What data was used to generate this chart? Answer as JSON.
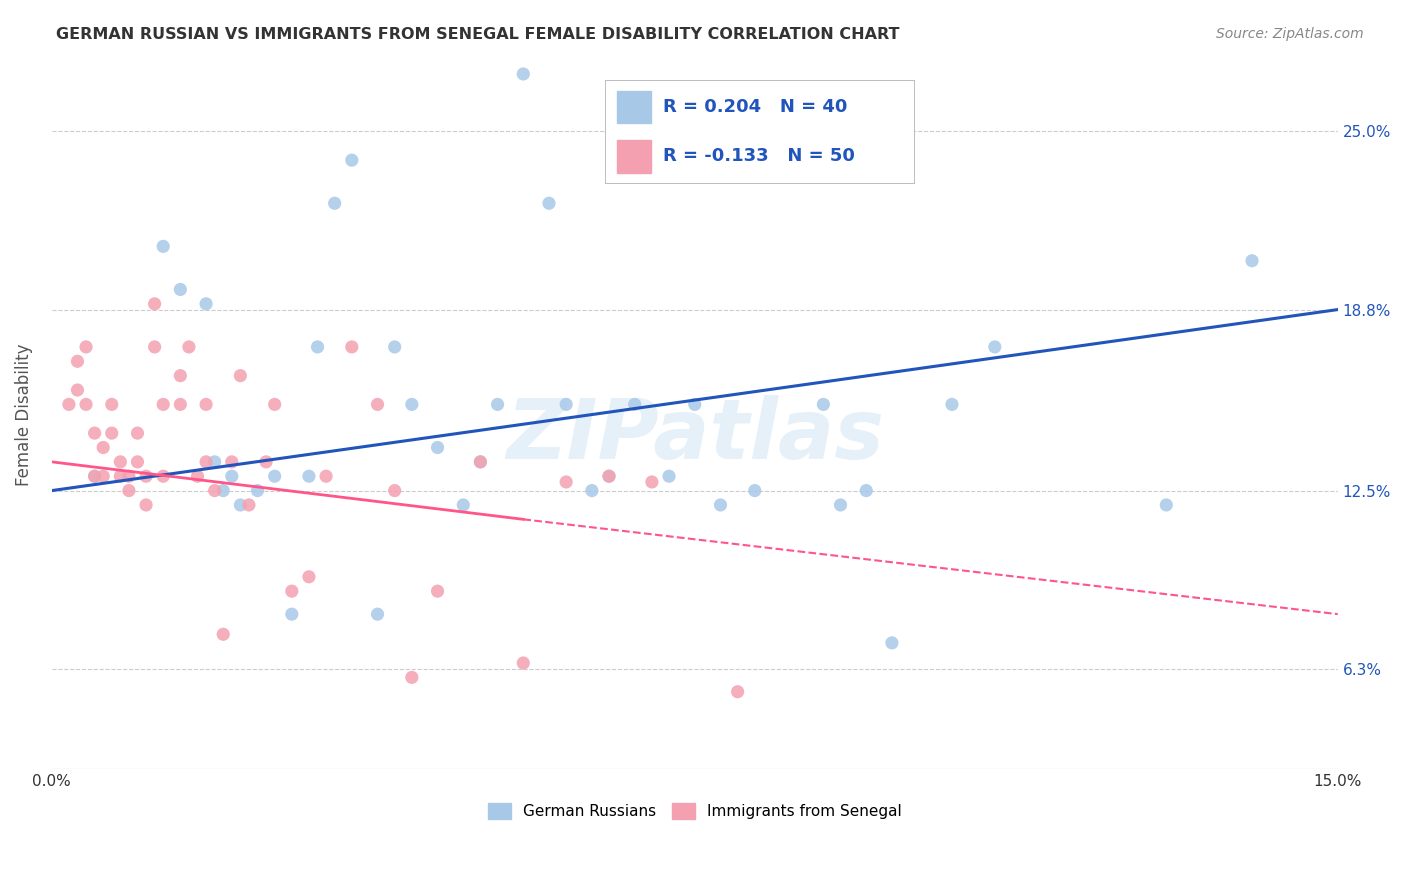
{
  "title": "GERMAN RUSSIAN VS IMMIGRANTS FROM SENEGAL FEMALE DISABILITY CORRELATION CHART",
  "source": "Source: ZipAtlas.com",
  "ylabel": "Female Disability",
  "xlim": [
    0.0,
    0.15
  ],
  "ylim": [
    0.028,
    0.275
  ],
  "ytick_positions": [
    0.063,
    0.125,
    0.188,
    0.25
  ],
  "ytick_labels": [
    "6.3%",
    "12.5%",
    "18.8%",
    "25.0%"
  ],
  "blue_color": "#A8C8E8",
  "pink_color": "#F4A0B0",
  "blue_line_color": "#2255BB",
  "pink_line_color": "#FF5588",
  "legend_label_blue": "German Russians",
  "legend_label_pink": "Immigrants from Senegal",
  "blue_scatter_x": [
    0.005,
    0.013,
    0.015,
    0.018,
    0.019,
    0.02,
    0.021,
    0.022,
    0.024,
    0.026,
    0.028,
    0.03,
    0.031,
    0.033,
    0.035,
    0.038,
    0.04,
    0.042,
    0.045,
    0.048,
    0.05,
    0.052,
    0.055,
    0.058,
    0.06,
    0.063,
    0.065,
    0.068,
    0.072,
    0.075,
    0.078,
    0.082,
    0.09,
    0.092,
    0.095,
    0.098,
    0.105,
    0.11,
    0.13,
    0.14
  ],
  "blue_scatter_y": [
    0.13,
    0.21,
    0.195,
    0.19,
    0.135,
    0.125,
    0.13,
    0.12,
    0.125,
    0.13,
    0.082,
    0.13,
    0.175,
    0.225,
    0.24,
    0.082,
    0.175,
    0.155,
    0.14,
    0.12,
    0.135,
    0.155,
    0.27,
    0.225,
    0.155,
    0.125,
    0.13,
    0.155,
    0.13,
    0.155,
    0.12,
    0.125,
    0.155,
    0.12,
    0.125,
    0.072,
    0.155,
    0.175,
    0.12,
    0.205
  ],
  "pink_scatter_x": [
    0.002,
    0.003,
    0.003,
    0.004,
    0.004,
    0.005,
    0.005,
    0.006,
    0.006,
    0.007,
    0.007,
    0.008,
    0.008,
    0.009,
    0.009,
    0.01,
    0.01,
    0.011,
    0.011,
    0.012,
    0.012,
    0.013,
    0.013,
    0.015,
    0.015,
    0.016,
    0.017,
    0.018,
    0.018,
    0.019,
    0.02,
    0.021,
    0.022,
    0.023,
    0.025,
    0.026,
    0.028,
    0.03,
    0.032,
    0.035,
    0.038,
    0.04,
    0.042,
    0.045,
    0.05,
    0.055,
    0.06,
    0.065,
    0.07,
    0.08
  ],
  "pink_scatter_y": [
    0.155,
    0.17,
    0.16,
    0.175,
    0.155,
    0.145,
    0.13,
    0.13,
    0.14,
    0.145,
    0.155,
    0.13,
    0.135,
    0.125,
    0.13,
    0.135,
    0.145,
    0.12,
    0.13,
    0.175,
    0.19,
    0.13,
    0.155,
    0.165,
    0.155,
    0.175,
    0.13,
    0.135,
    0.155,
    0.125,
    0.075,
    0.135,
    0.165,
    0.12,
    0.135,
    0.155,
    0.09,
    0.095,
    0.13,
    0.175,
    0.155,
    0.125,
    0.06,
    0.09,
    0.135,
    0.065,
    0.128,
    0.13,
    0.128,
    0.055
  ],
  "watermark": "ZIPatlas",
  "background_color": "#FFFFFF",
  "grid_color": "#CCCCCC"
}
